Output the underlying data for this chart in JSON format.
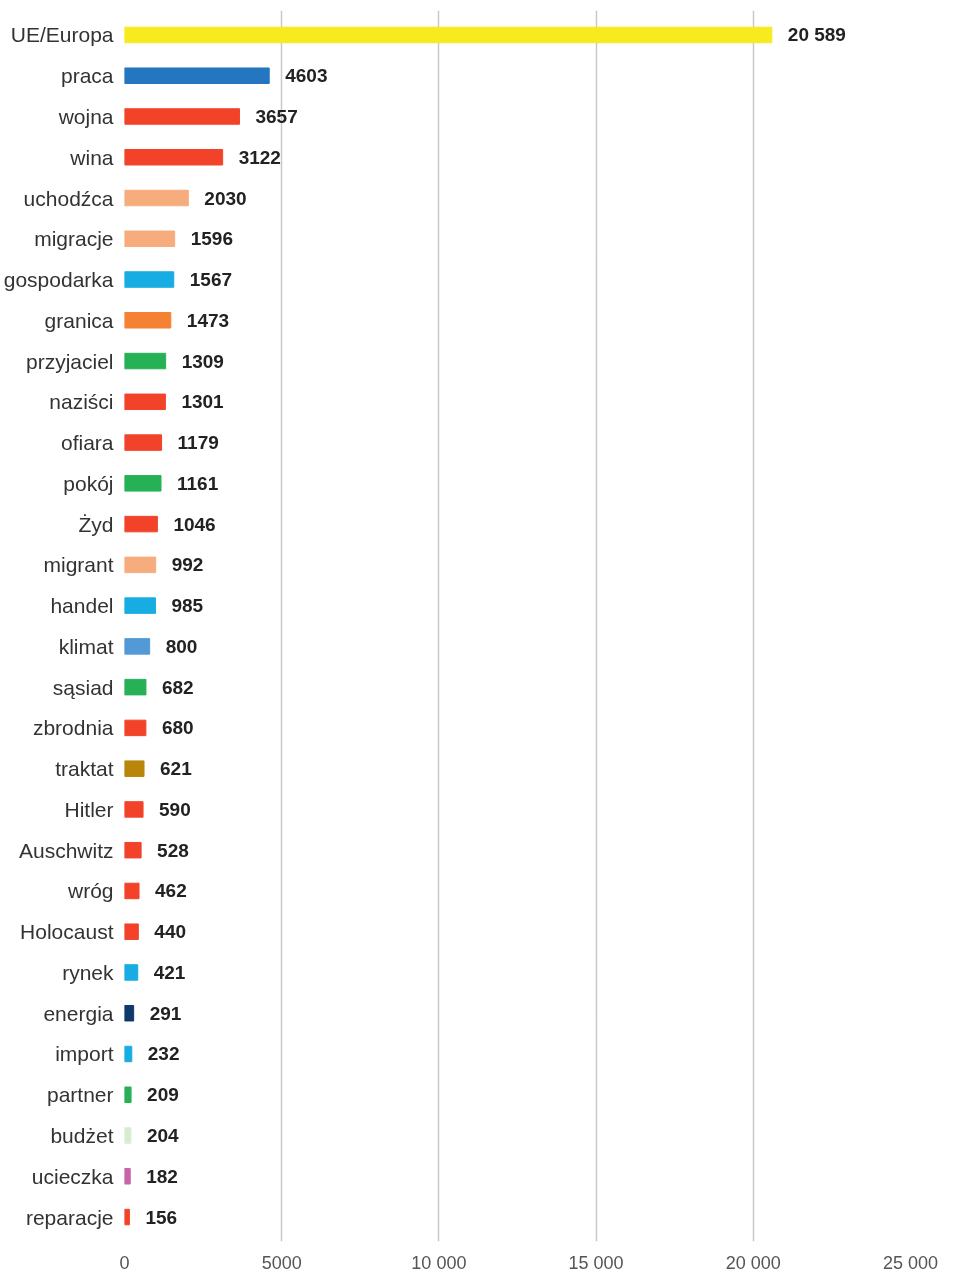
{
  "chart_data": {
    "type": "bar",
    "orientation": "horizontal",
    "categories": [
      "UE/Europa",
      "praca",
      "wojna",
      "wina",
      "uchodźca",
      "migracje",
      "gospodarka",
      "granica",
      "przyjaciel",
      "naziści",
      "ofiara",
      "pokój",
      "Żyd",
      "migrant",
      "handel",
      "klimat",
      "sąsiad",
      "zbrodnia",
      "traktat",
      "Hitler",
      "Auschwitz",
      "wróg",
      "Holocaust",
      "rynek",
      "energia",
      "import",
      "partner",
      "budżet",
      "ucieczka",
      "reparacje"
    ],
    "values": [
      20589,
      4603,
      3657,
      3122,
      2030,
      1596,
      1567,
      1473,
      1309,
      1301,
      1179,
      1161,
      1046,
      992,
      985,
      800,
      682,
      680,
      621,
      590,
      528,
      462,
      440,
      421,
      291,
      232,
      209,
      204,
      182,
      156
    ],
    "value_labels": [
      "20 589",
      "4603",
      "3657",
      "3122",
      "2030",
      "1596",
      "1567",
      "1473",
      "1309",
      "1301",
      "1179",
      "1161",
      "1046",
      "992",
      "985",
      "800",
      "682",
      "680",
      "621",
      "590",
      "528",
      "462",
      "440",
      "421",
      "291",
      "232",
      "209",
      "204",
      "182",
      "156"
    ],
    "colors": [
      "#f7ea1e",
      "#2476c0",
      "#f2432a",
      "#f2432a",
      "#f7ac7e",
      "#f7ac7e",
      "#17ade2",
      "#f58233",
      "#27b157",
      "#f2432a",
      "#f2432a",
      "#27b157",
      "#f2432a",
      "#f7ac7e",
      "#17ade2",
      "#5399d5",
      "#27b157",
      "#f2432a",
      "#b8860b",
      "#f2432a",
      "#f2432a",
      "#f2432a",
      "#f2432a",
      "#17ade2",
      "#0e3a6b",
      "#17ade2",
      "#27b157",
      "#d9ecd0",
      "#c864a8",
      "#f2432a"
    ],
    "xlim": [
      0,
      25000
    ],
    "xticks": [
      0,
      {
        "value": 5000,
        "label": "5000"
      },
      {
        "value": 10000,
        "label": "10 000"
      },
      {
        "value": 15000,
        "label": "15 000"
      },
      {
        "value": 20000,
        "label": "20 000"
      },
      {
        "value": 25000,
        "label": "25 000"
      }
    ],
    "grid": "x"
  }
}
